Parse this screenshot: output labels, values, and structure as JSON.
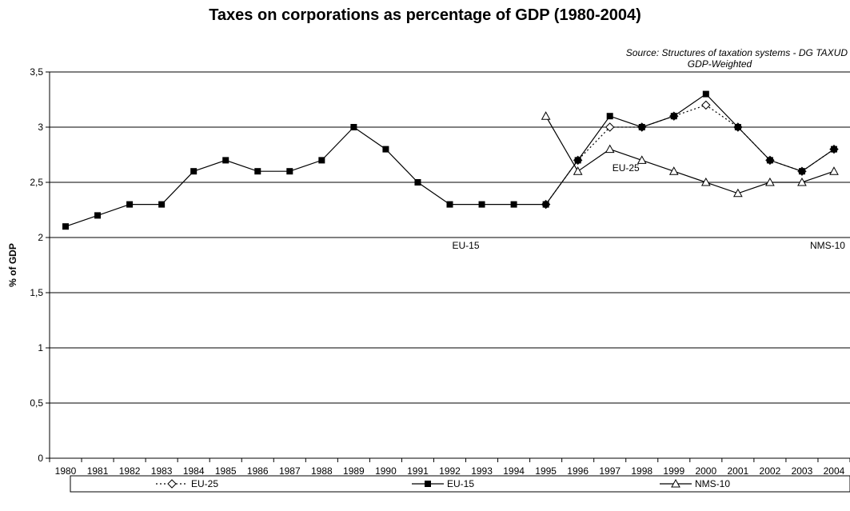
{
  "chart_data": {
    "type": "line",
    "title": "Taxes on corporations as percentage of GDP (1980-2004)",
    "source_line1": "Source: Structures of taxation systems - DG TAXUD",
    "source_line2": "GDP-Weighted",
    "xlabel": "",
    "ylabel": "% of GDP",
    "ylim": [
      0,
      3.5
    ],
    "y_ticks": [
      "0",
      "0,5",
      "1",
      "1,5",
      "2",
      "2,5",
      "3",
      "3,5"
    ],
    "y_tick_values": [
      0,
      0.5,
      1,
      1.5,
      2,
      2.5,
      3,
      3.5
    ],
    "grid": true,
    "x": [
      "1980",
      "1981",
      "1982",
      "1983",
      "1984",
      "1985",
      "1986",
      "1987",
      "1988",
      "1989",
      "1990",
      "1991",
      "1992",
      "1993",
      "1994",
      "1995",
      "1996",
      "1997",
      "1998",
      "1999",
      "2000",
      "2001",
      "2002",
      "2003",
      "2004"
    ],
    "series": [
      {
        "name": "EU-25",
        "marker": "diamond-open",
        "line": "dotted",
        "values": [
          null,
          null,
          null,
          null,
          null,
          null,
          null,
          null,
          null,
          null,
          null,
          null,
          null,
          null,
          null,
          2.3,
          2.7,
          3.0,
          3.0,
          3.1,
          3.2,
          3.0,
          2.7,
          2.6,
          2.8
        ]
      },
      {
        "name": "EU-15",
        "marker": "square-filled",
        "line": "solid",
        "values": [
          2.1,
          2.2,
          2.3,
          2.3,
          2.6,
          2.7,
          2.6,
          2.6,
          2.7,
          3.0,
          2.8,
          2.5,
          2.3,
          2.3,
          2.3,
          2.3,
          2.7,
          3.1,
          3.0,
          3.1,
          3.3,
          3.0,
          2.7,
          2.6,
          2.8
        ]
      },
      {
        "name": "NMS-10",
        "marker": "triangle-open",
        "line": "solid",
        "values": [
          null,
          null,
          null,
          null,
          null,
          null,
          null,
          null,
          null,
          null,
          null,
          null,
          null,
          null,
          null,
          3.1,
          2.6,
          2.8,
          2.7,
          2.6,
          2.5,
          2.4,
          2.5,
          2.5,
          2.6
        ]
      }
    ],
    "annotations": [
      {
        "text": "EU-25",
        "x": "1997.5",
        "y": 2.6
      },
      {
        "text": "EU-15",
        "x": "1992.5",
        "y": 1.9
      },
      {
        "text": "NMS-10",
        "x": "2003.8",
        "y": 1.9
      }
    ],
    "legend_position": "bottom"
  }
}
